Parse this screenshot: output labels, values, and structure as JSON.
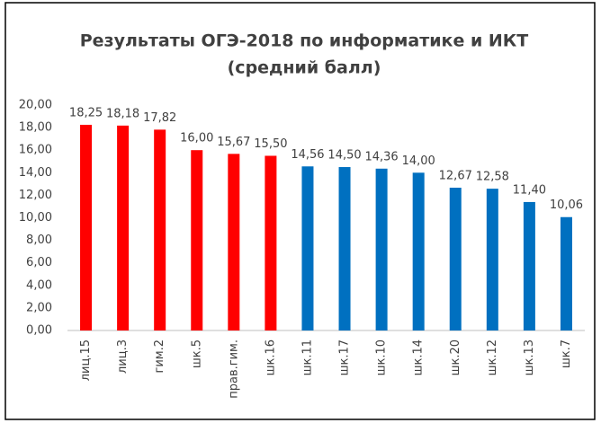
{
  "chart_data": {
    "type": "bar",
    "title": "Результаты ОГЭ-2018 по информатике и ИКТ",
    "subtitle": "(средний балл)",
    "categories": [
      "лиц.15",
      "лиц.3",
      "гим.2",
      "шк.5",
      "прав.гим.",
      "шк.16",
      "шк.11",
      "шк.17",
      "шк.10",
      "шк.14",
      "шк.20",
      "шк.12",
      "шк.13",
      "шк.7"
    ],
    "values": [
      18.25,
      18.18,
      17.82,
      16.0,
      15.67,
      15.5,
      14.56,
      14.5,
      14.36,
      14.0,
      12.67,
      12.58,
      11.4,
      10.06
    ],
    "value_labels": [
      "18,25",
      "18,18",
      "17,82",
      "16,00",
      "15,67",
      "15,50",
      "14,56",
      "14,50",
      "14,36",
      "14,00",
      "12,67",
      "12,58",
      "11,40",
      "10,06"
    ],
    "colors": [
      "#ff0000",
      "#ff0000",
      "#ff0000",
      "#ff0000",
      "#ff0000",
      "#ff0000",
      "#0070c0",
      "#0070c0",
      "#0070c0",
      "#0070c0",
      "#0070c0",
      "#0070c0",
      "#0070c0",
      "#0070c0"
    ],
    "ylim": [
      0,
      20
    ],
    "yticks": [
      {
        "value": 0,
        "label": "0,00"
      },
      {
        "value": 2,
        "label": "2,00"
      },
      {
        "value": 4,
        "label": "4,00"
      },
      {
        "value": 6,
        "label": "6,00"
      },
      {
        "value": 8,
        "label": "8,00"
      },
      {
        "value": 10,
        "label": "10,00"
      },
      {
        "value": 12,
        "label": "12,00"
      },
      {
        "value": 14,
        "label": "14,00"
      },
      {
        "value": 16,
        "label": "16,00"
      },
      {
        "value": 18,
        "label": "18,00"
      },
      {
        "value": 20,
        "label": "20,00"
      }
    ],
    "grid": false
  }
}
